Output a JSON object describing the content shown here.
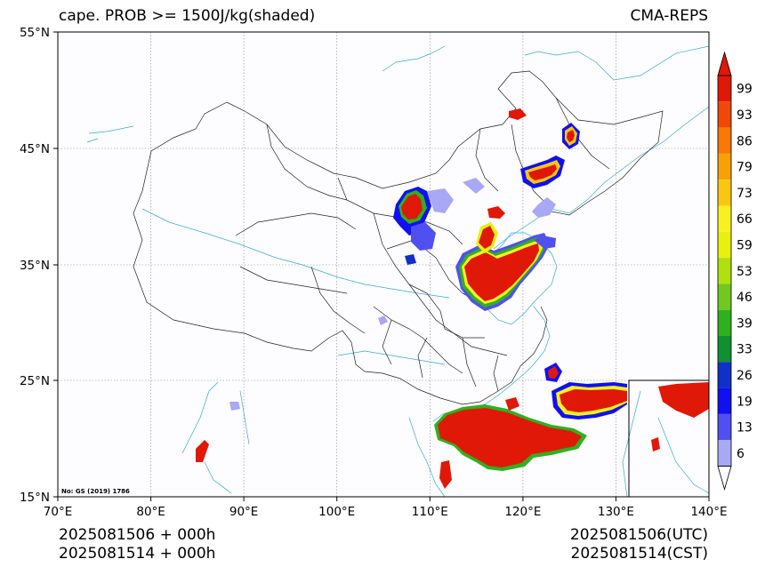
{
  "header": {
    "title": "cape. PROB >= 1500J/kg(shaded)",
    "source": "CMA-REPS"
  },
  "map": {
    "lat_labels": [
      "55°N",
      "45°N",
      "35°N",
      "25°N",
      "15°N"
    ],
    "lon_labels": [
      "70°E",
      "80°E",
      "90°E",
      "100°E",
      "110°E",
      "120°E",
      "130°E",
      "140°E"
    ],
    "note": "No: GS (2019) 1786",
    "extent": {
      "lon": [
        70,
        140
      ],
      "lat": [
        15,
        55
      ]
    }
  },
  "colorbar": {
    "levels": [
      "6",
      "13",
      "19",
      "26",
      "33",
      "39",
      "46",
      "53",
      "59",
      "66",
      "73",
      "79",
      "86",
      "93",
      "99"
    ],
    "colors": [
      "#a8a8f5",
      "#5050f0",
      "#1010f0",
      "#1030c8",
      "#109030",
      "#30b020",
      "#70c820",
      "#b0e010",
      "#e8f010",
      "#f8f020",
      "#f8c810",
      "#f8a008",
      "#f87808",
      "#f04808",
      "#e01808"
    ]
  },
  "footer": {
    "left_line1": "2025081506  +  000h",
    "left_line2": "2025081514  +  000h",
    "right_line1": "2025081506(UTC)",
    "right_line2": "2025081514(CST)"
  }
}
